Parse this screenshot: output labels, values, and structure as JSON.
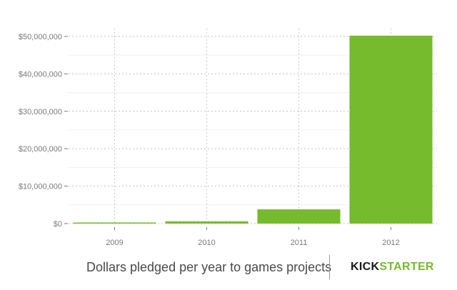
{
  "chart_data": {
    "type": "bar",
    "title": "Dollars pledged per year to games projects",
    "xlabel": "",
    "ylabel": "",
    "categories": [
      "2009",
      "2010",
      "2011",
      "2012"
    ],
    "values": [
      100000,
      600000,
      3800000,
      50200000
    ],
    "ylim": [
      0,
      50000000
    ],
    "yticks": [
      0,
      10000000,
      20000000,
      30000000,
      40000000,
      50000000
    ],
    "ytick_labels": [
      "$0",
      "$10,000,000",
      "$20,000,000",
      "$30,000,000",
      "$40,000,000",
      "$50,000,000"
    ],
    "grid": true,
    "legend": null,
    "bar_color": "#76bb2e"
  },
  "caption": "Dollars pledged per year to games projects",
  "brand": {
    "part1": "KICK",
    "part2": "STARTER",
    "color_dark": "#1a1a1a",
    "color_green": "#76bb2e"
  }
}
